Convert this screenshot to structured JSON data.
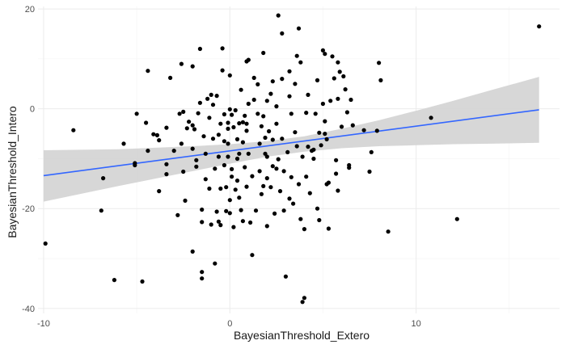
{
  "chart_data": {
    "type": "scatter",
    "title": "",
    "xlabel": "BayesianThreshold_Extero",
    "ylabel": "BayesianThreshold_Intero",
    "xlim": [
      -10.3,
      17.7
    ],
    "ylim": [
      -41.0,
      20.5
    ],
    "x_ticks": [
      -10,
      0,
      10
    ],
    "y_ticks": [
      20,
      0,
      -20,
      -40
    ],
    "grid": true,
    "legend": "none",
    "colors": {
      "points": "#000000",
      "fit_line": "#3366FF",
      "confidence_band": "#d3d3d3",
      "grid": "#ebebeb"
    },
    "fit_line": {
      "x": [
        -10,
        16.6
      ],
      "y": [
        -13.4,
        -0.2
      ]
    },
    "confidence_band": {
      "x": [
        -10,
        -6,
        -2,
        0,
        2,
        4,
        6,
        8,
        10,
        12,
        14,
        16.6
      ],
      "upper": [
        -8.3,
        -8.1,
        -7.5,
        -7.1,
        -6.5,
        -5.5,
        -4.0,
        -2.3,
        -0.4,
        1.6,
        3.7,
        6.4
      ],
      "lower": [
        -18.6,
        -15.5,
        -12.5,
        -11.0,
        -9.6,
        -8.6,
        -7.9,
        -7.5,
        -7.3,
        -7.1,
        -7.0,
        -6.8
      ]
    },
    "points": [
      [
        -9.9,
        -27.0
      ],
      [
        -8.4,
        -4.3
      ],
      [
        -6.9,
        -20.4
      ],
      [
        -6.8,
        -13.9
      ],
      [
        -6.2,
        -34.3
      ],
      [
        -5.7,
        -7.0
      ],
      [
        -5.1,
        -11.3
      ],
      [
        -5.1,
        -10.9
      ],
      [
        -5.0,
        -1.0
      ],
      [
        -4.7,
        -34.6
      ],
      [
        -4.5,
        -2.8
      ],
      [
        -4.4,
        -8.4
      ],
      [
        -4.4,
        7.6
      ],
      [
        -4.1,
        -5.1
      ],
      [
        -3.9,
        -5.3
      ],
      [
        -3.8,
        -6.3
      ],
      [
        -3.8,
        -16.5
      ],
      [
        -3.4,
        -3.8
      ],
      [
        -3.4,
        -11.1
      ],
      [
        -3.4,
        -13.1
      ],
      [
        -3.2,
        6.2
      ],
      [
        -3.0,
        -8.4
      ],
      [
        -2.8,
        -21.3
      ],
      [
        -2.7,
        -1.0
      ],
      [
        -2.6,
        9.0
      ],
      [
        -2.6,
        -7.0
      ],
      [
        -2.5,
        -12.6
      ],
      [
        -2.5,
        -0.6
      ],
      [
        -2.4,
        -18.4
      ],
      [
        -2.3,
        -3.9
      ],
      [
        -2.2,
        -2.6
      ],
      [
        -2.0,
        -3.3
      ],
      [
        -2.0,
        -28.6
      ],
      [
        -2.0,
        -8.0
      ],
      [
        -2.0,
        8.5
      ],
      [
        -1.9,
        -4.1
      ],
      [
        -1.8,
        -10.3
      ],
      [
        -1.8,
        -11.6
      ],
      [
        -1.7,
        -0.9
      ],
      [
        -1.6,
        12.0
      ],
      [
        -1.6,
        1.2
      ],
      [
        -1.5,
        -34.0
      ],
      [
        -1.5,
        -32.7
      ],
      [
        -1.5,
        -20.2
      ],
      [
        -1.5,
        -22.7
      ],
      [
        -1.4,
        -5.5
      ],
      [
        -1.3,
        -14.1
      ],
      [
        -1.3,
        -9.0
      ],
      [
        -1.2,
        2.0
      ],
      [
        -1.1,
        -1.8
      ],
      [
        -1.1,
        -16.0
      ],
      [
        -1.0,
        2.8
      ],
      [
        -1.0,
        -23.2
      ],
      [
        -0.9,
        -6.0
      ],
      [
        -0.9,
        0.8
      ],
      [
        -0.8,
        -12.0
      ],
      [
        -0.8,
        -31.0
      ],
      [
        -0.7,
        2.6
      ],
      [
        -0.7,
        -20.6
      ],
      [
        -0.6,
        -5.2
      ],
      [
        -0.6,
        -9.6
      ],
      [
        -0.6,
        -22.6
      ],
      [
        -0.5,
        -3.0
      ],
      [
        -0.5,
        -16.0
      ],
      [
        -0.5,
        -23.3
      ],
      [
        -0.4,
        12.1
      ],
      [
        -0.4,
        7.7
      ],
      [
        -0.3,
        -1.1
      ],
      [
        -0.3,
        -6.5
      ],
      [
        -0.3,
        -11.3
      ],
      [
        -0.2,
        -20.5
      ],
      [
        -0.2,
        -15.7
      ],
      [
        -0.1,
        -2.8
      ],
      [
        -0.1,
        -9.6
      ],
      [
        -0.1,
        -4.0
      ],
      [
        -0.1,
        -7.0
      ],
      [
        0.0,
        -0.1
      ],
      [
        0.0,
        6.7
      ],
      [
        0.0,
        -20.9
      ],
      [
        0.0,
        -18.3
      ],
      [
        0.1,
        -13.6
      ],
      [
        0.1,
        -1.2
      ],
      [
        0.1,
        -12.1
      ],
      [
        0.2,
        -3.7
      ],
      [
        0.2,
        -23.7
      ],
      [
        0.3,
        -0.3
      ],
      [
        0.3,
        -16.2
      ],
      [
        0.4,
        -6.1
      ],
      [
        0.4,
        -14.4
      ],
      [
        0.4,
        -10.0
      ],
      [
        0.5,
        -2.9
      ],
      [
        0.5,
        -17.8
      ],
      [
        0.5,
        -9.0
      ],
      [
        0.6,
        3.8
      ],
      [
        0.6,
        -20.3
      ],
      [
        0.7,
        -2.7
      ],
      [
        0.7,
        -22.5
      ],
      [
        0.7,
        -6.7
      ],
      [
        0.8,
        -1.4
      ],
      [
        0.8,
        -11.7
      ],
      [
        0.9,
        9.5
      ],
      [
        0.9,
        -3.0
      ],
      [
        0.9,
        -15.6
      ],
      [
        0.9,
        -4.4
      ],
      [
        1.0,
        9.8
      ],
      [
        1.0,
        1.0
      ],
      [
        1.0,
        -9.0
      ],
      [
        1.1,
        -22.8
      ],
      [
        1.2,
        -29.3
      ],
      [
        1.2,
        -13.5
      ],
      [
        1.3,
        1.8
      ],
      [
        1.3,
        6.2
      ],
      [
        1.4,
        -20.4
      ],
      [
        1.5,
        4.9
      ],
      [
        1.5,
        -1.0
      ],
      [
        1.6,
        -7.0
      ],
      [
        1.6,
        -12.5
      ],
      [
        1.7,
        -17.1
      ],
      [
        1.7,
        -3.5
      ],
      [
        1.8,
        11.2
      ],
      [
        1.8,
        -1.5
      ],
      [
        1.8,
        -15.5
      ],
      [
        1.9,
        -5.8
      ],
      [
        1.9,
        -9.0
      ],
      [
        2.0,
        -23.5
      ],
      [
        2.0,
        1.6
      ],
      [
        2.0,
        -13.9
      ],
      [
        2.0,
        -9.6
      ],
      [
        2.1,
        -4.5
      ],
      [
        2.2,
        -15.7
      ],
      [
        2.2,
        3.0
      ],
      [
        2.3,
        -6.2
      ],
      [
        2.3,
        -11.5
      ],
      [
        2.3,
        5.5
      ],
      [
        2.4,
        -21.0
      ],
      [
        2.5,
        -3.0
      ],
      [
        2.5,
        -12.0
      ],
      [
        2.5,
        0.5
      ],
      [
        2.6,
        -10.1
      ],
      [
        2.6,
        18.7
      ],
      [
        2.7,
        -16.5
      ],
      [
        2.8,
        15.1
      ],
      [
        2.8,
        -6.0
      ],
      [
        2.8,
        6.0
      ],
      [
        2.9,
        -12.5
      ],
      [
        2.9,
        -20.4
      ],
      [
        3.0,
        -33.6
      ],
      [
        3.1,
        -8.7
      ],
      [
        3.2,
        2.5
      ],
      [
        3.2,
        -18.0
      ],
      [
        3.2,
        7.5
      ],
      [
        3.3,
        -1.0
      ],
      [
        3.3,
        -13.7
      ],
      [
        3.4,
        -19.0
      ],
      [
        3.5,
        -4.7
      ],
      [
        3.5,
        5.0
      ],
      [
        3.6,
        10.6
      ],
      [
        3.6,
        -7.5
      ],
      [
        3.7,
        16.1
      ],
      [
        3.7,
        -15.1
      ],
      [
        3.8,
        -22.1
      ],
      [
        3.8,
        9.3
      ],
      [
        3.9,
        -9.6
      ],
      [
        3.9,
        -38.7
      ],
      [
        4.0,
        -37.9
      ],
      [
        4.0,
        -24.1
      ],
      [
        4.1,
        -0.8
      ],
      [
        4.1,
        -13.6
      ],
      [
        4.2,
        -7.6
      ],
      [
        4.2,
        2.8
      ],
      [
        4.3,
        -16.9
      ],
      [
        4.4,
        -8.4
      ],
      [
        4.5,
        -10.0
      ],
      [
        4.5,
        -8.2
      ],
      [
        4.6,
        -1.0
      ],
      [
        4.7,
        -20.0
      ],
      [
        4.7,
        5.7
      ],
      [
        4.8,
        -22.3
      ],
      [
        4.8,
        -4.8
      ],
      [
        4.9,
        -7.3
      ],
      [
        5.0,
        11.7
      ],
      [
        5.0,
        1.0
      ],
      [
        5.1,
        -5.0
      ],
      [
        5.1,
        11.0
      ],
      [
        5.1,
        -2.5
      ],
      [
        5.2,
        -6.1
      ],
      [
        5.2,
        -15.1
      ],
      [
        5.3,
        -14.8
      ],
      [
        5.3,
        -24.0
      ],
      [
        5.4,
        1.6
      ],
      [
        5.5,
        10.5
      ],
      [
        5.6,
        6.1
      ],
      [
        5.7,
        -10.3
      ],
      [
        5.7,
        -13.0
      ],
      [
        5.8,
        -16.4
      ],
      [
        5.8,
        2.0
      ],
      [
        5.8,
        9.3
      ],
      [
        5.9,
        7.4
      ],
      [
        6.0,
        -3.6
      ],
      [
        6.1,
        6.5
      ],
      [
        6.2,
        3.9
      ],
      [
        6.3,
        -0.7
      ],
      [
        6.4,
        -11.3
      ],
      [
        6.4,
        -11.8
      ],
      [
        6.5,
        1.8
      ],
      [
        6.6,
        -3.3
      ],
      [
        7.2,
        -4.3
      ],
      [
        7.5,
        -12.6
      ],
      [
        7.6,
        -8.7
      ],
      [
        7.9,
        -4.4
      ],
      [
        8.0,
        9.2
      ],
      [
        8.1,
        5.7
      ],
      [
        8.5,
        -24.6
      ],
      [
        10.8,
        -1.8
      ],
      [
        12.2,
        -22.1
      ],
      [
        16.6,
        16.5
      ]
    ]
  }
}
